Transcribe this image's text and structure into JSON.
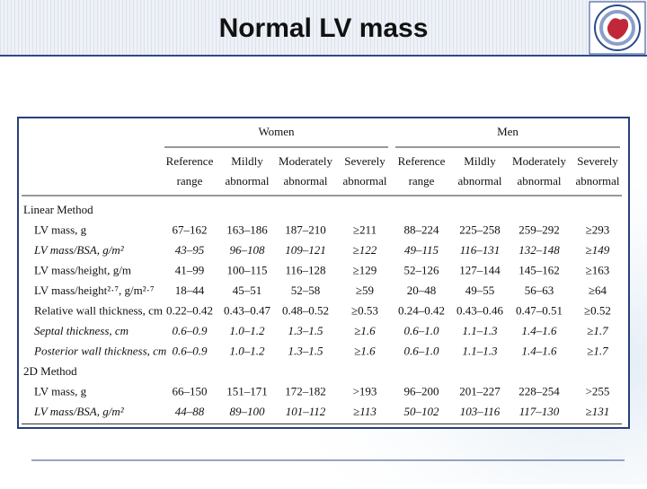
{
  "header": {
    "title": "Normal LV mass"
  },
  "table": {
    "groups": [
      "Women",
      "Men"
    ],
    "columns": [
      {
        "line1": "Reference",
        "line2": "range"
      },
      {
        "line1": "Mildly",
        "line2": "abnormal"
      },
      {
        "line1": "Moderately",
        "line2": "abnormal"
      },
      {
        "line1": "Severely",
        "line2": "abnormal"
      },
      {
        "line1": "Reference",
        "line2": "range"
      },
      {
        "line1": "Mildly",
        "line2": "abnormal"
      },
      {
        "line1": "Moderately",
        "line2": "abnormal"
      },
      {
        "line1": "Severely",
        "line2": "abnormal"
      }
    ],
    "sections": [
      {
        "title": "Linear Method",
        "rows": [
          {
            "label": "LV mass, g",
            "italic": false,
            "cells": [
              "67–162",
              "163–186",
              "187–210",
              "≥211",
              "88–224",
              "225–258",
              "259–292",
              "≥293"
            ]
          },
          {
            "label": "LV mass/BSA, g/m²",
            "italic": true,
            "cells": [
              "43–95",
              "96–108",
              "109–121",
              "≥122",
              "49–115",
              "116–131",
              "132–148",
              "≥149"
            ]
          },
          {
            "label": "LV mass/height, g/m",
            "italic": false,
            "cells": [
              "41–99",
              "100–115",
              "116–128",
              "≥129",
              "52–126",
              "127–144",
              "145–162",
              "≥163"
            ]
          },
          {
            "label": "LV mass/height²·⁷, g/m²·⁷",
            "italic": false,
            "cells": [
              "18–44",
              "45–51",
              "52–58",
              "≥59",
              "20–48",
              "49–55",
              "56–63",
              "≥64"
            ]
          },
          {
            "label": "Relative wall thickness, cm",
            "italic": false,
            "cells": [
              "0.22–0.42",
              "0.43–0.47",
              "0.48–0.52",
              "≥0.53",
              "0.24–0.42",
              "0.43–0.46",
              "0.47–0.51",
              "≥0.52"
            ]
          },
          {
            "label": "Septal thickness, cm",
            "italic": true,
            "cells": [
              "0.6–0.9",
              "1.0–1.2",
              "1.3–1.5",
              "≥1.6",
              "0.6–1.0",
              "1.1–1.3",
              "1.4–1.6",
              "≥1.7"
            ]
          },
          {
            "label": "Posterior wall thickness, cm",
            "italic": true,
            "cells": [
              "0.6–0.9",
              "1.0–1.2",
              "1.3–1.5",
              "≥1.6",
              "0.6–1.0",
              "1.1–1.3",
              "1.4–1.6",
              "≥1.7"
            ]
          }
        ]
      },
      {
        "title": "2D Method",
        "rows": [
          {
            "label": "LV mass, g",
            "italic": false,
            "cells": [
              "66–150",
              "151–171",
              "172–182",
              ">193",
              "96–200",
              "201–227",
              "228–254",
              ">255"
            ]
          },
          {
            "label": "LV mass/BSA, g/m²",
            "italic": true,
            "cells": [
              "44–88",
              "89–100",
              "101–112",
              "≥113",
              "50–102",
              "103–116",
              "117–130",
              "≥131"
            ]
          }
        ]
      }
    ]
  }
}
